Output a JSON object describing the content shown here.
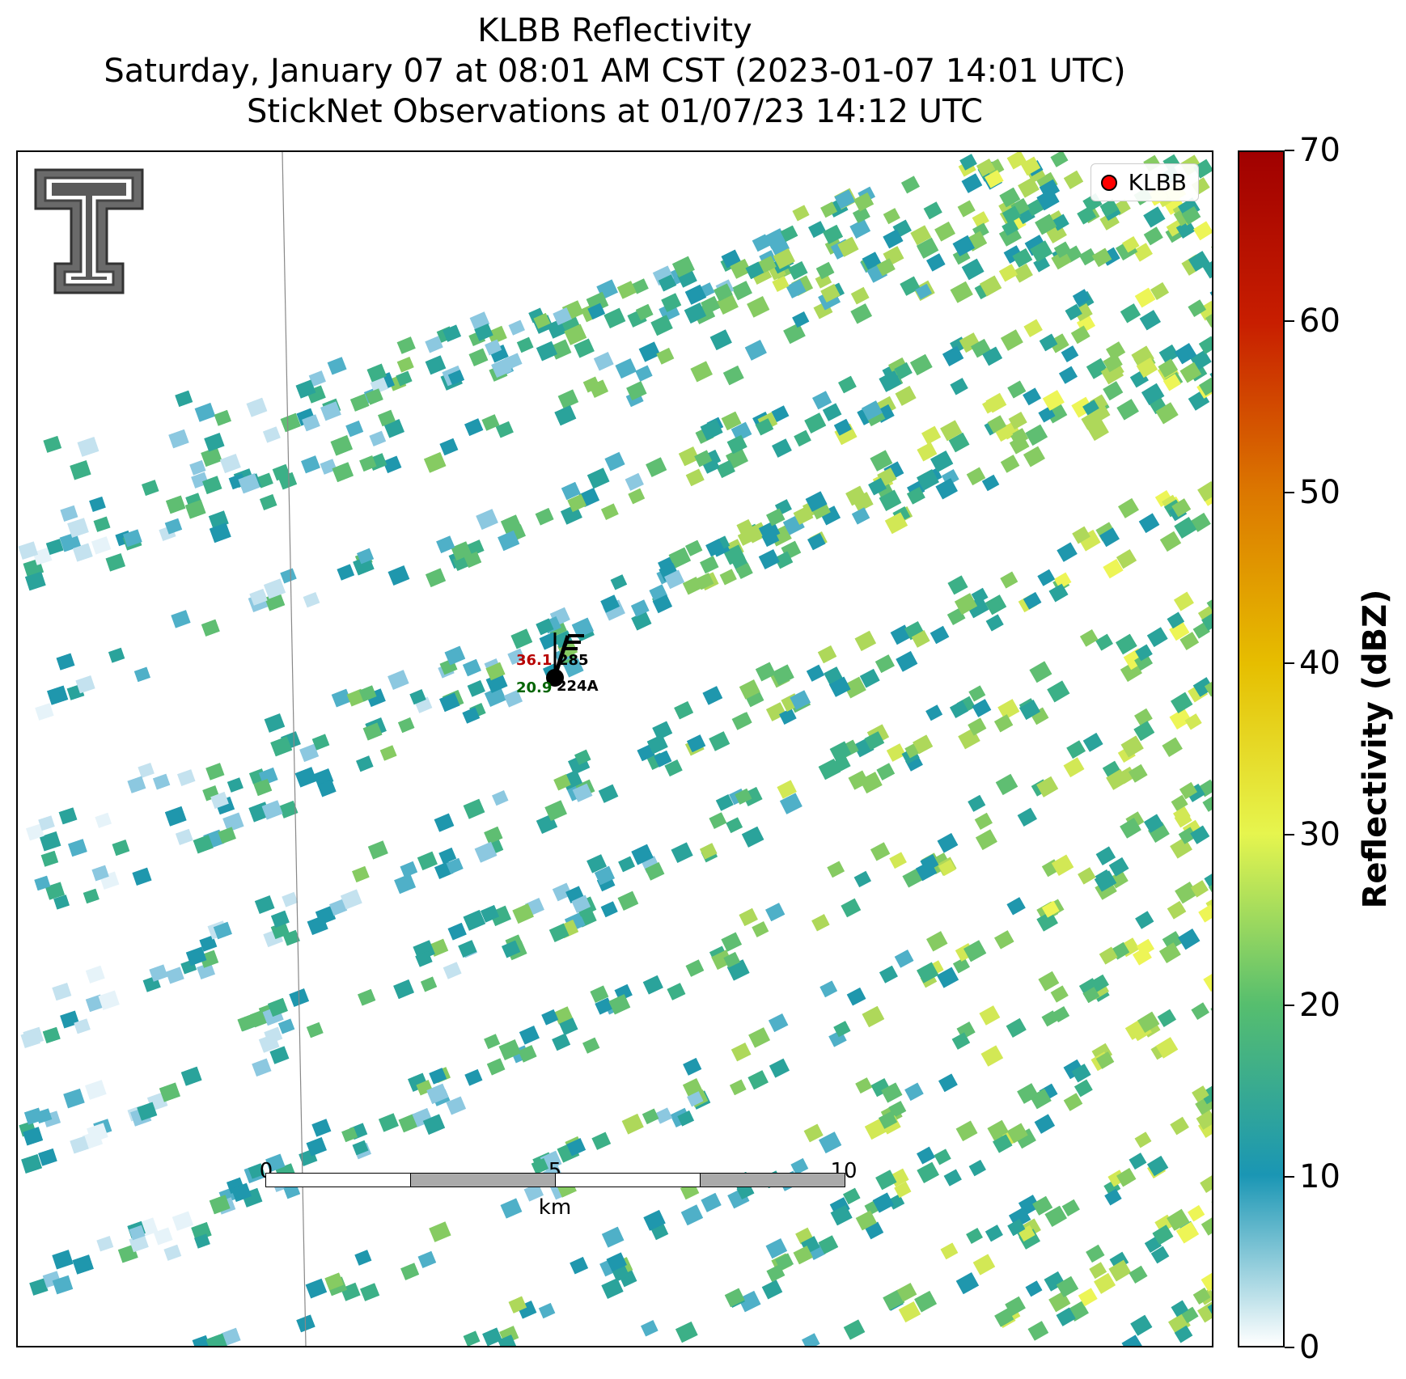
{
  "title": {
    "line1": "KLBB Reflectivity",
    "line2": "Saturday, January 07 at 08:01 AM CST (2023-01-07 14:01 UTC)",
    "line3": "StickNet Observations at 01/07/23 14:12 UTC"
  },
  "legend": {
    "label": "KLBB",
    "marker_color": "#ff0000"
  },
  "logo": {
    "icon": "texas-tech-double-t-logo"
  },
  "station": {
    "id": "224A",
    "temperature": "36.1",
    "dewpoint": "20.9",
    "pressure": "285",
    "temperature_color": "#b80000",
    "dewpoint_color": "#006400"
  },
  "scale_bar": {
    "ticks": [
      "0",
      "5",
      "10"
    ],
    "unit": "km"
  },
  "colorbar": {
    "label": "Reflectivity (dBZ)",
    "ticks": [
      "0",
      "10",
      "20",
      "30",
      "40",
      "50",
      "60",
      "70"
    ],
    "min": 0,
    "max": 70,
    "colors": [
      "#ffffff",
      "#1a96b4",
      "#56be6e",
      "#e6f54e",
      "#e6be00",
      "#dc7800",
      "#c81e00",
      "#a00000"
    ]
  }
}
